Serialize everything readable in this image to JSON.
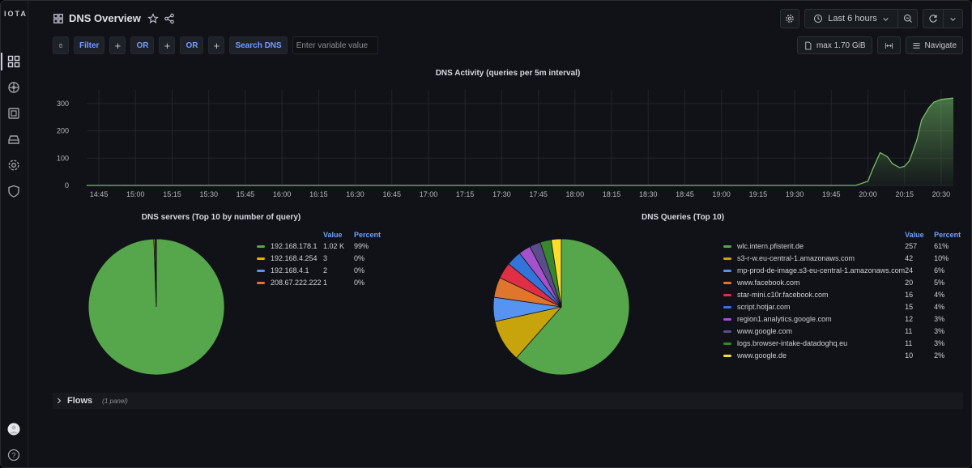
{
  "app": {
    "logo": "IOTA",
    "title": "DNS Overview"
  },
  "toolbar": {
    "time_range": "Last 6 hours"
  },
  "filterbar": {
    "filter_label": "Filter",
    "or_label_1": "OR",
    "or_label_2": "OR",
    "search_label": "Search DNS",
    "input_placeholder": "Enter variable value",
    "memory_label": "max 1.70 GiB",
    "navigate_label": "Navigate"
  },
  "sidebar": {
    "icons": [
      "dashboards-icon",
      "explore-icon",
      "alert-icon",
      "storage-icon",
      "settings-icon",
      "shield-icon"
    ],
    "bottom_icons": [
      "avatar",
      "help-icon"
    ]
  },
  "activity_panel": {
    "title": "DNS Activity (queries per 5m interval)"
  },
  "servers_panel": {
    "title": "DNS servers (Top 10 by number of query)",
    "col_value": "Value",
    "col_percent": "Percent",
    "rows": [
      {
        "name": "192.168.178.1",
        "value": "1.02 K",
        "percent": "99%",
        "color": "#56a64b"
      },
      {
        "name": "192.168.4.254",
        "value": "3",
        "percent": "0%",
        "color": "#e0b400"
      },
      {
        "name": "192.168.4.1",
        "value": "2",
        "percent": "0%",
        "color": "#5794f2"
      },
      {
        "name": "208.67.222.222",
        "value": "1",
        "percent": "0%",
        "color": "#e0752d"
      }
    ]
  },
  "queries_panel": {
    "title": "DNS Queries (Top 10)",
    "col_value": "Value",
    "col_percent": "Percent",
    "rows": [
      {
        "name": "wlc.intern.pfisterit.de",
        "value": "257",
        "percent": "61%",
        "color": "#56a64b"
      },
      {
        "name": "s3-r-w.eu-central-1.amazonaws.com",
        "value": "42",
        "percent": "10%",
        "color": "#c8a40c"
      },
      {
        "name": "mp-prod-de-image.s3-eu-central-1.amazonaws.com",
        "value": "24",
        "percent": "6%",
        "color": "#5794f2"
      },
      {
        "name": "www.facebook.com",
        "value": "20",
        "percent": "5%",
        "color": "#e0752d"
      },
      {
        "name": "star-mini.c10r.facebook.com",
        "value": "16",
        "percent": "4%",
        "color": "#e02f44"
      },
      {
        "name": "script.hotjar.com",
        "value": "15",
        "percent": "4%",
        "color": "#3274d9"
      },
      {
        "name": "region1.analytics.google.com",
        "value": "12",
        "percent": "3%",
        "color": "#a352cc"
      },
      {
        "name": "www.google.com",
        "value": "11",
        "percent": "3%",
        "color": "#5b4d8c"
      },
      {
        "name": "logs.browser-intake-datadoghq.eu",
        "value": "11",
        "percent": "3%",
        "color": "#37872d"
      },
      {
        "name": "www.google.de",
        "value": "10",
        "percent": "2%",
        "color": "#fade2a"
      }
    ]
  },
  "flows": {
    "title": "Flows",
    "subtitle": "(1 panel)"
  },
  "chart_data": [
    {
      "type": "area",
      "title": "DNS Activity (queries per 5m interval)",
      "x_ticks": [
        "14:45",
        "15:00",
        "15:15",
        "15:30",
        "15:45",
        "16:00",
        "16:15",
        "16:30",
        "16:45",
        "17:00",
        "17:15",
        "17:30",
        "17:45",
        "18:00",
        "18:15",
        "18:30",
        "18:45",
        "19:00",
        "19:15",
        "19:30",
        "19:45",
        "20:00",
        "20:15",
        "20:30"
      ],
      "y_ticks": [
        0,
        100,
        200,
        300
      ],
      "ylim": [
        0,
        350
      ],
      "series": [
        {
          "color": "#73bf69",
          "x": [
            "14:40",
            "19:55",
            "20:00",
            "20:02",
            "20:05",
            "20:08",
            "20:10",
            "20:13",
            "20:15",
            "20:17",
            "20:20",
            "20:22",
            "20:25",
            "20:27",
            "20:30",
            "20:33",
            "20:35"
          ],
          "values": [
            0,
            0,
            15,
            60,
            120,
            105,
            80,
            65,
            70,
            90,
            165,
            240,
            285,
            305,
            315,
            318,
            320
          ]
        }
      ]
    },
    {
      "type": "pie",
      "title": "DNS servers (Top 10 by number of query)",
      "labels": [
        "192.168.178.1",
        "192.168.4.254",
        "192.168.4.1",
        "208.67.222.222"
      ],
      "values": [
        1020,
        3,
        2,
        1
      ]
    },
    {
      "type": "pie",
      "title": "DNS Queries (Top 10)",
      "labels": [
        "wlc.intern.pfisterit.de",
        "s3-r-w.eu-central-1.amazonaws.com",
        "mp-prod-de-image.s3-eu-central-1.amazonaws.com",
        "www.facebook.com",
        "star-mini.c10r.facebook.com",
        "script.hotjar.com",
        "region1.analytics.google.com",
        "www.google.com",
        "logs.browser-intake-datadoghq.eu",
        "www.google.de"
      ],
      "values": [
        257,
        42,
        24,
        20,
        16,
        15,
        12,
        11,
        11,
        10
      ]
    }
  ]
}
